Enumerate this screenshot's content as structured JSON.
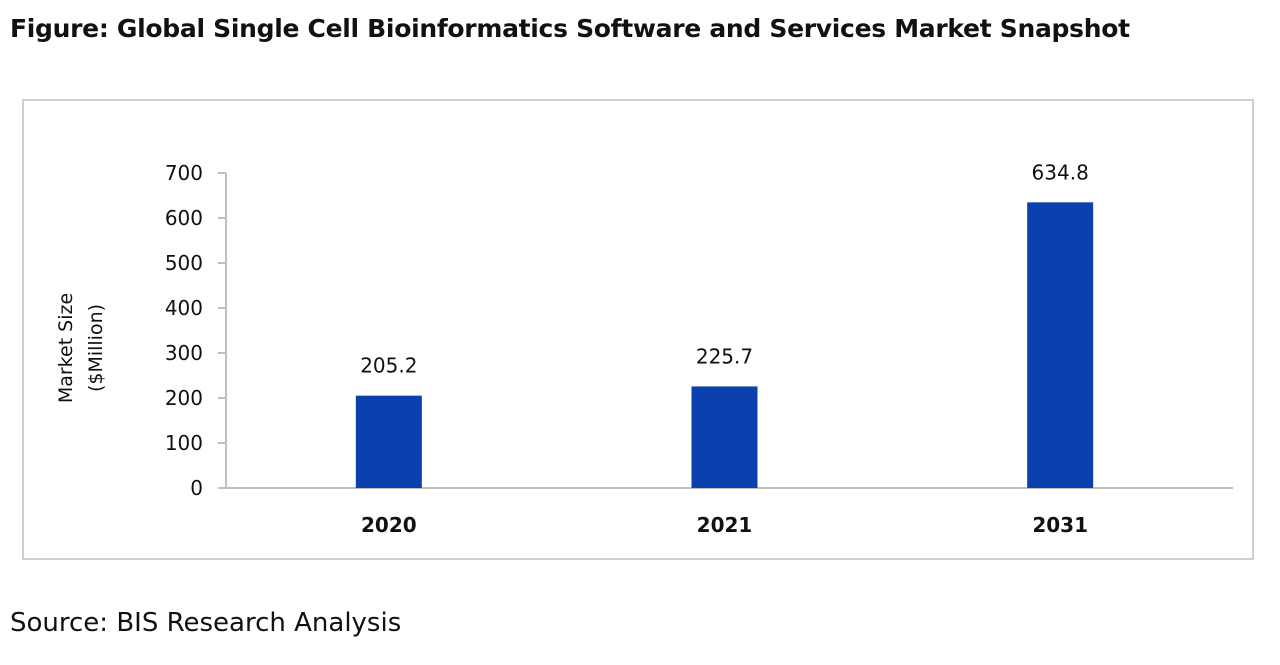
{
  "figure_title": "Figure: Global Single Cell Bioinformatics Software and Services Market Snapshot",
  "source": "Source: BIS Research Analysis",
  "chart_data": {
    "type": "bar",
    "title": "",
    "categories": [
      "2020",
      "2021",
      "2031"
    ],
    "values": [
      205.2,
      225.7,
      634.8
    ],
    "data_labels": [
      "205.2",
      "225.7",
      "634.8"
    ],
    "xlabel": "",
    "ylabel": "Market Size ($Million)",
    "ylabel_lines": [
      "Market Size",
      "($Million)"
    ],
    "ylim": [
      0,
      700
    ],
    "yticks": [
      0,
      100,
      200,
      300,
      400,
      500,
      600,
      700
    ],
    "grid": false,
    "legend": "none",
    "bar_color": "#0b40ae",
    "axis_color": "#bfbfbf"
  }
}
